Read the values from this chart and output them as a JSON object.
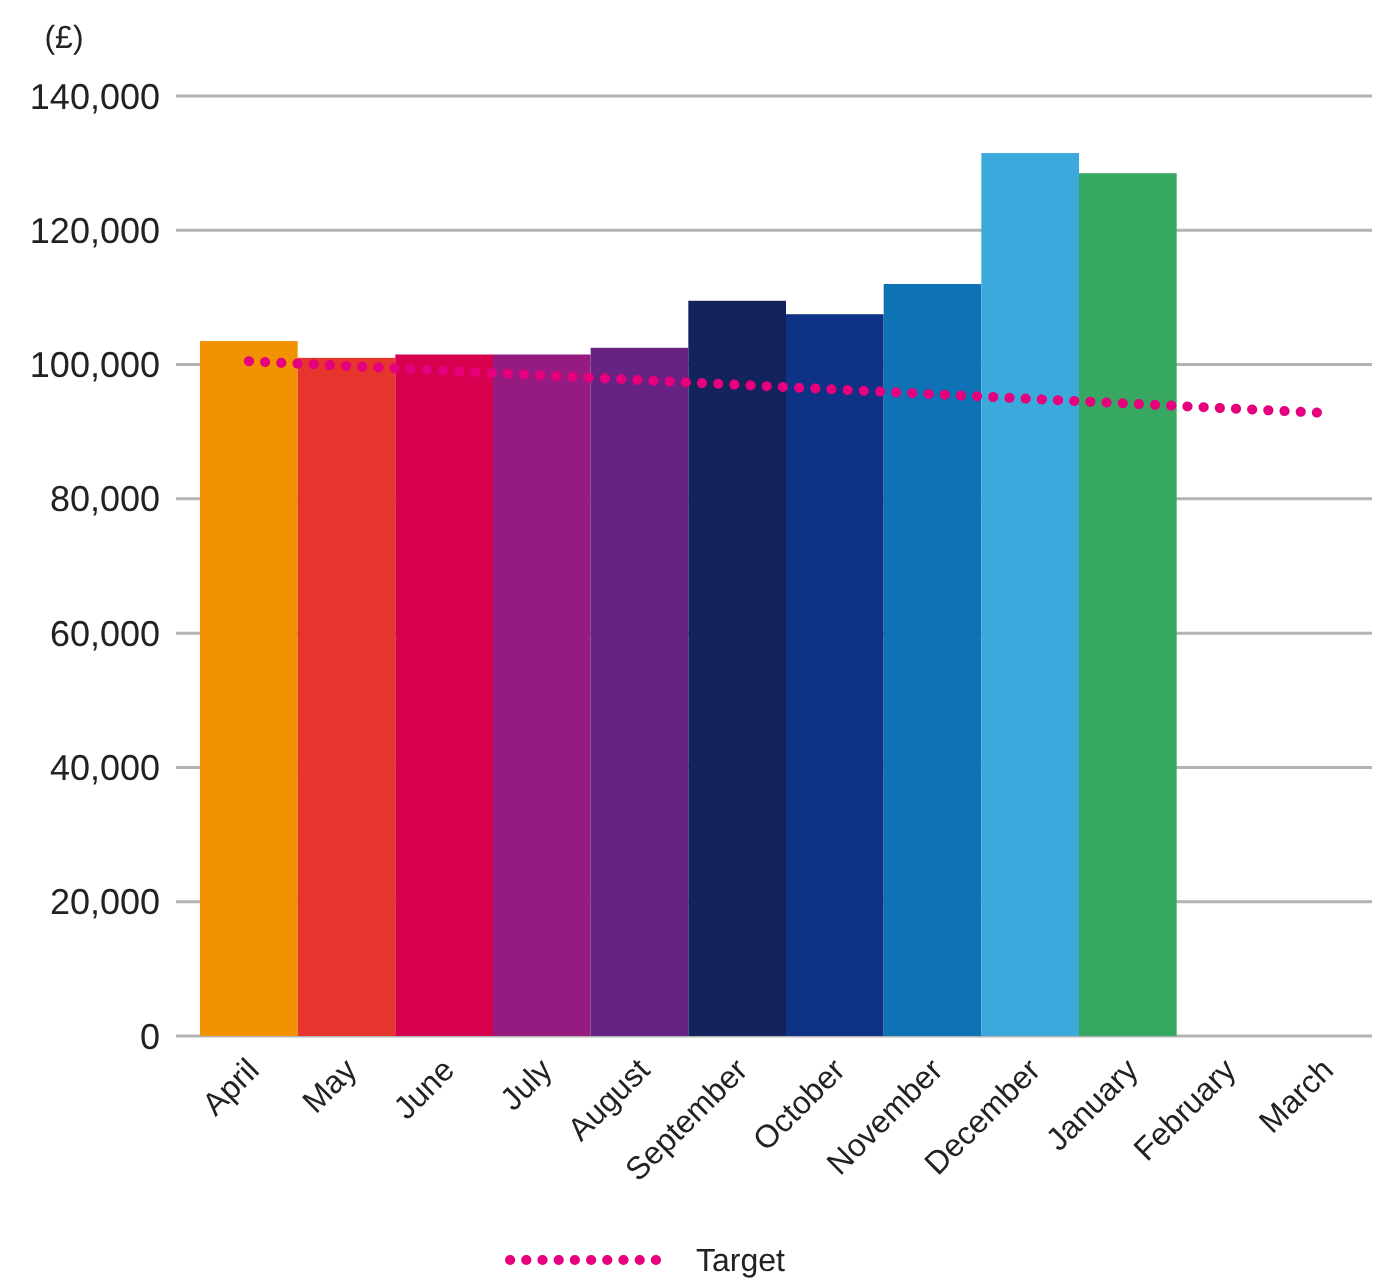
{
  "chart_data": {
    "type": "bar",
    "ylabel": "(£)",
    "categories": [
      "April",
      "May",
      "June",
      "July",
      "August",
      "September",
      "October",
      "November",
      "December",
      "January",
      "February",
      "March"
    ],
    "series": [
      {
        "colors": [
          "#f39200",
          "#e5352d",
          "#d6004e",
          "#951b81",
          "#662382",
          "#13235b",
          "#0e3285",
          "#0e72b5",
          "#3ba9dc",
          "#36a862",
          null,
          null
        ],
        "values": [
          103500,
          101000,
          101500,
          101500,
          102500,
          109500,
          107500,
          112000,
          131500,
          128500,
          null,
          null
        ]
      },
      {
        "type": "line",
        "name": "Target",
        "color": "#e6007e",
        "line_style": "dotted",
        "values": [
          100500,
          99800,
          99100,
          98400,
          97700,
          97000,
          96300,
          95600,
          94900,
          94200,
          93500,
          92800
        ]
      }
    ],
    "ylim": [
      0,
      140000
    ],
    "yticks": [
      {
        "value": 0,
        "label": "0"
      },
      {
        "value": 20000,
        "label": "20,000"
      },
      {
        "value": 40000,
        "label": "40,000"
      },
      {
        "value": 60000,
        "label": "60,000"
      },
      {
        "value": 80000,
        "label": "80,000"
      },
      {
        "value": 100000,
        "label": "100,000"
      },
      {
        "value": 120000,
        "label": "120,000"
      },
      {
        "value": 140000,
        "label": "140,000"
      }
    ],
    "grid": "y",
    "legend": "bottom"
  }
}
